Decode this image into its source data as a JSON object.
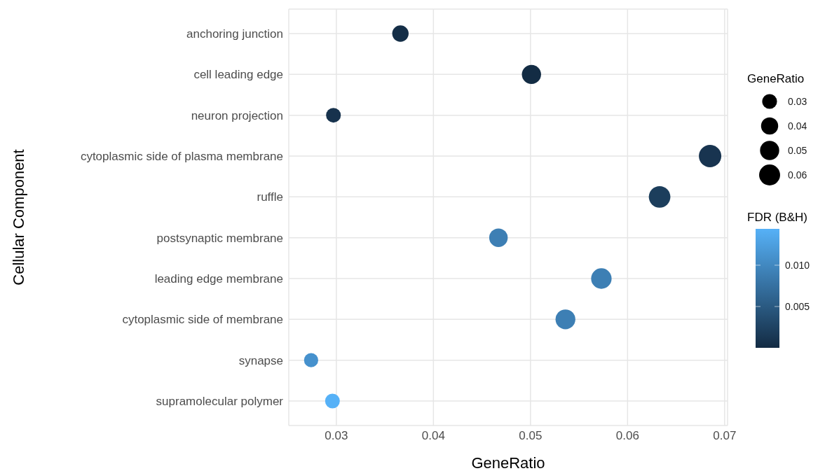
{
  "chart_data": {
    "type": "bubble",
    "orientation": "horizontal",
    "ylabel": "Cellular Component",
    "xlabel": "GeneRatio",
    "legend_title": "GeneRatio",
    "clabel": "FDR (B&H)",
    "categories": [
      "anchoring junction",
      "cell leading edge",
      "neuron projection",
      "cytoplasmic side of plasma membrane",
      "ruffle",
      "postsynaptic membrane",
      "leading edge membrane",
      "cytoplasmic side of membrane",
      "synapse",
      "supramolecular polymer"
    ],
    "values": [
      0.0366,
      0.0501,
      0.0297,
      0.0685,
      0.0633,
      0.0467,
      0.0573,
      0.0536,
      0.0274,
      0.0296
    ],
    "sizes": [
      0.0366,
      0.0501,
      0.0297,
      0.0685,
      0.0633,
      0.0467,
      0.0573,
      0.0536,
      0.0274,
      0.0296
    ],
    "size_legend": [
      0.03,
      0.04,
      0.05,
      0.06
    ],
    "cvalues": [
      0.0003,
      0.0001,
      0.0008,
      0.001,
      0.002,
      0.009,
      0.009,
      0.009,
      0.011,
      0.0144
    ],
    "clim": [
      0,
      0.0144
    ],
    "cticks": [
      {
        "value": 0.005,
        "label": "0.005"
      },
      {
        "value": 0.01,
        "label": "0.010"
      }
    ],
    "xlim": [
      0.0251,
      0.0703
    ],
    "xticks": [
      0.03,
      0.04,
      0.05,
      0.06,
      0.07
    ],
    "grid": true
  }
}
